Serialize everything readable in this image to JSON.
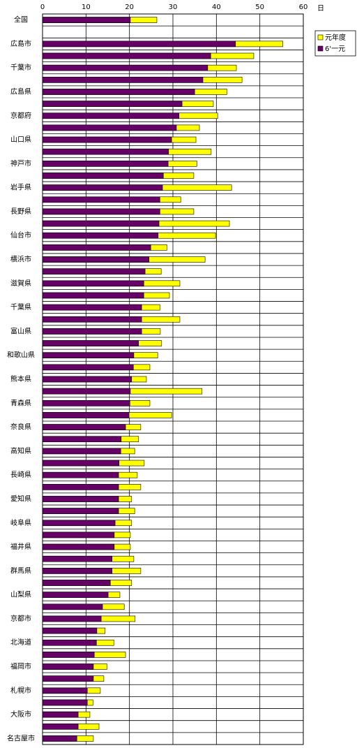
{
  "chart_data": {
    "type": "bar",
    "orientation": "horizontal",
    "overlap": true,
    "xlabel": "日",
    "categories": [
      "全国",
      null,
      "広島市",
      null,
      "千葉市",
      null,
      "広島県",
      null,
      "京都府",
      null,
      "山口県",
      null,
      "神戸市",
      null,
      "岩手県",
      null,
      "長野県",
      null,
      "仙台市",
      null,
      "横浜市",
      null,
      "滋賀県",
      null,
      "千葉県",
      null,
      "富山県",
      null,
      "和歌山県",
      null,
      "熊本県",
      null,
      "青森県",
      null,
      "奈良県",
      null,
      "高知県",
      null,
      "長崎県",
      null,
      "愛知県",
      null,
      "岐阜県",
      null,
      "福井県",
      null,
      "群馬県",
      null,
      "山梨県",
      null,
      "京都市",
      null,
      "北海道",
      null,
      "福岡市",
      null,
      "札幌市",
      null,
      "大阪市",
      null,
      "名古屋市"
    ],
    "series": [
      {
        "name": "元年度",
        "color": "#ffff00",
        "values": [
          26.3,
          null,
          55.3,
          48.6,
          44.6,
          45.9,
          42.4,
          39.3,
          40.3,
          36.1,
          35.3,
          38.8,
          35.5,
          34.8,
          43.5,
          31.8,
          34.8,
          43.0,
          39.8,
          28.6,
          37.4,
          27.3,
          31.6,
          29.2,
          27.0,
          31.6,
          27.1,
          27.4,
          26.5,
          24.7,
          23.9,
          36.7,
          24.7,
          29.7,
          22.6,
          22.1,
          21.2,
          23.4,
          21.8,
          22.6,
          20.5,
          21.2,
          20.5,
          20.2,
          20.2,
          21.0,
          22.6,
          20.5,
          17.8,
          18.8,
          21.3,
          14.4,
          16.4,
          19.1,
          14.8,
          14.1,
          13.3,
          11.6,
          10.9,
          13.0,
          11.7
        ]
      },
      {
        "name": "6'一元",
        "color": "#660066",
        "values": [
          20.2,
          null,
          44.4,
          38.7,
          38.0,
          36.9,
          35.0,
          32.1,
          31.4,
          30.8,
          29.7,
          29.0,
          28.9,
          27.8,
          27.6,
          27.0,
          27.0,
          26.8,
          26.6,
          24.9,
          24.5,
          23.6,
          23.3,
          23.3,
          22.8,
          22.8,
          22.8,
          22.1,
          21.0,
          20.9,
          20.5,
          20.2,
          20.1,
          19.9,
          19.1,
          18.1,
          18.0,
          17.6,
          17.5,
          17.5,
          17.5,
          17.5,
          16.7,
          16.5,
          16.5,
          16.0,
          16.0,
          15.6,
          15.1,
          13.8,
          13.5,
          12.5,
          12.4,
          11.9,
          11.7,
          11.7,
          10.3,
          10.3,
          8.2,
          8.2,
          7.9
        ]
      }
    ],
    "xlim": [
      0,
      60
    ],
    "xticks": [
      0,
      10,
      20,
      30,
      40,
      50,
      60
    ],
    "grid": true,
    "legend": "upper right"
  }
}
